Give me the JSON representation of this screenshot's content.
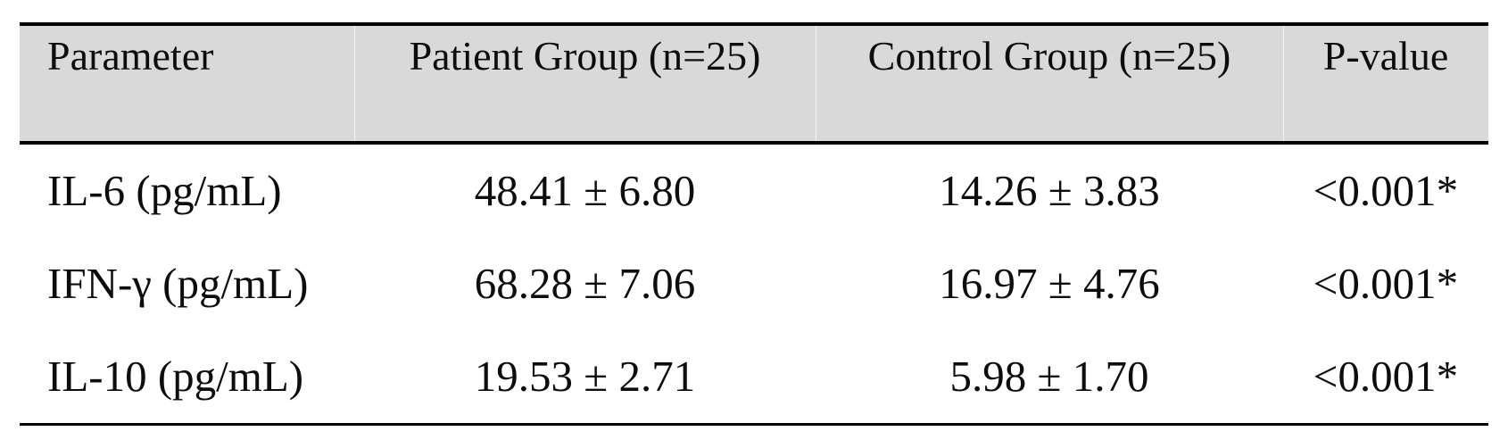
{
  "table": {
    "columns": [
      {
        "label": "Parameter"
      },
      {
        "label": "Patient Group (n=25)"
      },
      {
        "label": "Control Group (n=25)"
      },
      {
        "label": "P-value"
      }
    ],
    "rows": [
      {
        "parameter": "IL-6 (pg/mL)",
        "patient": "48.41 ± 6.80",
        "control": "14.26 ± 3.83",
        "pvalue": "<0.001*"
      },
      {
        "parameter": "IFN-γ (pg/mL)",
        "patient": "68.28 ± 7.06",
        "control": "16.97 ± 4.76",
        "pvalue": "<0.001*"
      },
      {
        "parameter": "IL-10 (pg/mL)",
        "patient": "19.53 ± 2.71",
        "control": "5.98 ± 1.70",
        "pvalue": "<0.001*"
      }
    ]
  },
  "colors": {
    "header_bg": "#d9d9d9",
    "border": "#000000",
    "text": "#0d0d0d"
  }
}
